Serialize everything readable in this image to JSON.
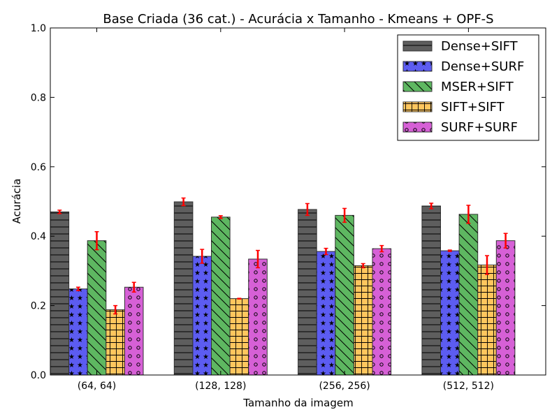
{
  "chart_data": {
    "type": "bar",
    "title": "Base Criada (36 cat.) - Acurácia x Tamanho - Kmeans + OPF-S",
    "xlabel": "Tamanho da imagem",
    "ylabel": "Acurácia",
    "ylim": [
      0,
      1.0
    ],
    "yticks": [
      "0.0",
      "0.2",
      "0.4",
      "0.6",
      "0.8",
      "1.0"
    ],
    "categories": [
      "(64, 64)",
      "(128, 128)",
      "(256, 256)",
      "(512, 512)"
    ],
    "legend_position": "top-right",
    "grid": false,
    "series": [
      {
        "name": "Dense+SIFT",
        "color": "#4d4d4d",
        "hatch": "horizontal-lines",
        "values": [
          0.47,
          0.499,
          0.477,
          0.487
        ],
        "errors": [
          0.005,
          0.011,
          0.017,
          0.008
        ]
      },
      {
        "name": "Dense+SURF",
        "color": "#4a4af0",
        "hatch": "stars",
        "values": [
          0.248,
          0.342,
          0.356,
          0.358
        ],
        "errors": [
          0.005,
          0.02,
          0.009,
          0.002
        ]
      },
      {
        "name": "MSER+SIFT",
        "color": "#4caf50",
        "hatch": "diagonal-lines",
        "values": [
          0.387,
          0.455,
          0.46,
          0.463
        ],
        "errors": [
          0.026,
          0.004,
          0.02,
          0.026
        ]
      },
      {
        "name": "SIFT+SIFT",
        "color": "#ffc04d",
        "hatch": "grid",
        "values": [
          0.188,
          0.22,
          0.315,
          0.317
        ],
        "errors": [
          0.012,
          0.001,
          0.006,
          0.027
        ]
      },
      {
        "name": "SURF+SURF",
        "color": "#d24fd2",
        "hatch": "circles",
        "values": [
          0.253,
          0.334,
          0.364,
          0.387
        ],
        "errors": [
          0.014,
          0.025,
          0.009,
          0.021
        ]
      }
    ]
  }
}
